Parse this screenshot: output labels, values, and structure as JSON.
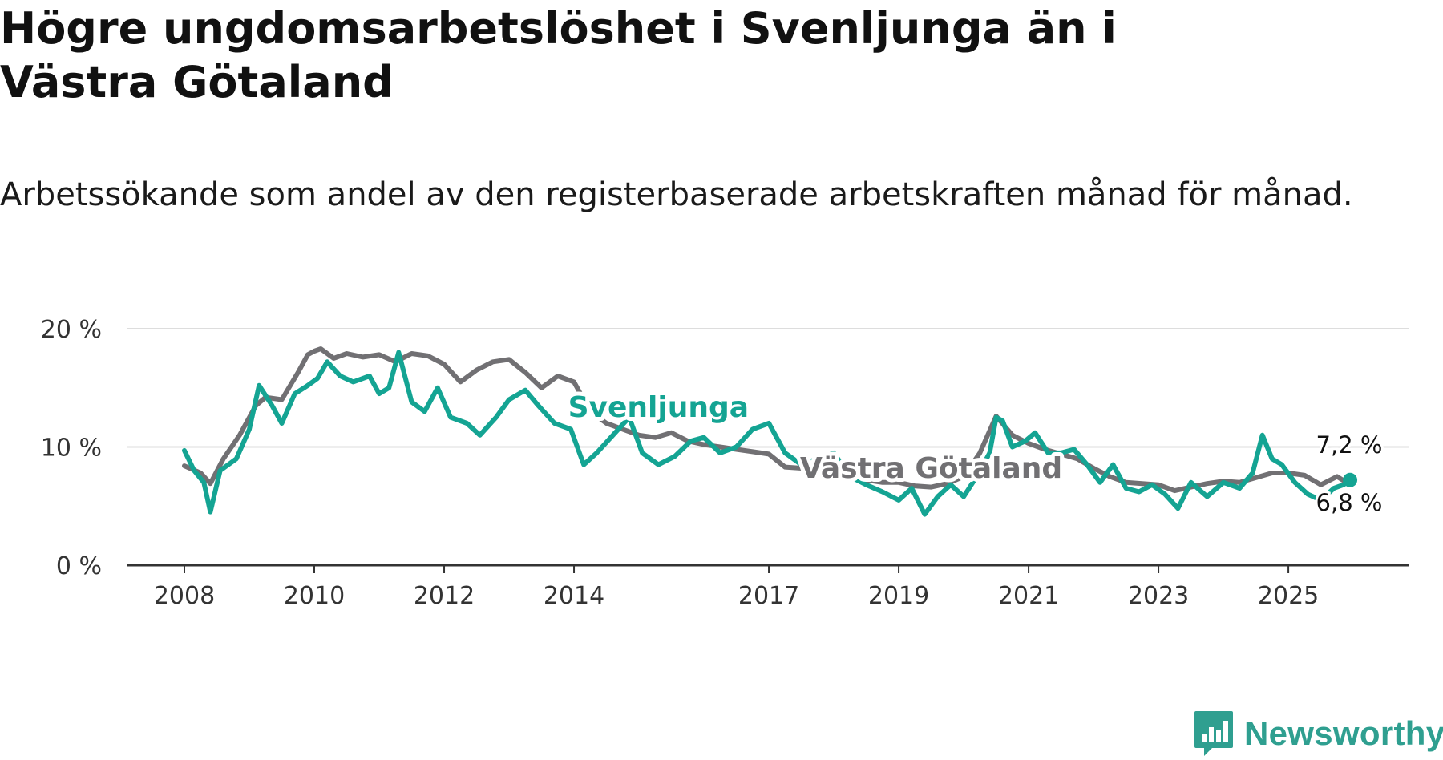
{
  "title": "Högre ungdomsarbetslöshet i Svenljunga än i Västra Götaland",
  "subtitle": "Arbetssökande som andel av den registerbaserade arbetskraften månad för månad.",
  "brand": {
    "name": "Newsworthy",
    "icon": "newsworthy-chart-icon"
  },
  "colors": {
    "svenljunga": "#14a493",
    "vastra_gotaland": "#717073",
    "grid": "#dddddd",
    "axis": "#333333",
    "brand": "#2f9f90"
  },
  "chart_data": {
    "type": "line",
    "title": "Högre ungdomsarbetslöshet i Svenljunga än i Västra Götaland",
    "xlabel": "",
    "ylabel": "",
    "ylim": [
      0,
      20
    ],
    "xlim": [
      2008,
      2026.9
    ],
    "y_ticks": [
      {
        "value": 0,
        "label": "0 %"
      },
      {
        "value": 10,
        "label": "10 %"
      },
      {
        "value": 20,
        "label": "20 %"
      }
    ],
    "x_ticks": [
      {
        "value": 2008,
        "label": "2008"
      },
      {
        "value": 2010,
        "label": "2010"
      },
      {
        "value": 2012,
        "label": "2012"
      },
      {
        "value": 2014,
        "label": "2014"
      },
      {
        "value": 2017,
        "label": "2017"
      },
      {
        "value": 2019,
        "label": "2019"
      },
      {
        "value": 2021,
        "label": "2021"
      },
      {
        "value": 2023,
        "label": "2023"
      },
      {
        "value": 2025,
        "label": "2025"
      }
    ],
    "grid": true,
    "series": [
      {
        "name": "Västra Götaland",
        "label": "Västra Götaland",
        "end_label": "6,8 %",
        "x": [
          2008.0,
          2008.25,
          2008.4,
          2008.6,
          2008.85,
          2009.1,
          2009.25,
          2009.5,
          2009.75,
          2009.9,
          2010.0,
          2010.1,
          2010.3,
          2010.5,
          2010.75,
          2011.0,
          2011.25,
          2011.5,
          2011.75,
          2012.0,
          2012.25,
          2012.5,
          2012.75,
          2013.0,
          2013.25,
          2013.5,
          2013.75,
          2014.0,
          2014.25,
          2014.5,
          2014.75,
          2015.0,
          2015.25,
          2015.5,
          2015.75,
          2016.0,
          2016.25,
          2016.5,
          2016.75,
          2017.0,
          2017.25,
          2017.5,
          2017.75,
          2018.0,
          2018.25,
          2018.5,
          2018.75,
          2019.0,
          2019.25,
          2019.5,
          2019.75,
          2020.0,
          2020.25,
          2020.5,
          2020.75,
          2021.0,
          2021.25,
          2021.5,
          2021.75,
          2022.0,
          2022.25,
          2022.5,
          2022.75,
          2023.0,
          2023.25,
          2023.5,
          2023.75,
          2024.0,
          2024.25,
          2024.5,
          2024.75,
          2025.0,
          2025.25,
          2025.5,
          2025.75,
          2025.95
        ],
        "values": [
          8.4,
          7.8,
          6.9,
          9.0,
          11.0,
          13.5,
          14.2,
          14.0,
          16.3,
          17.8,
          18.1,
          18.3,
          17.5,
          17.9,
          17.6,
          17.8,
          17.2,
          17.9,
          17.7,
          17.0,
          15.5,
          16.5,
          17.2,
          17.4,
          16.3,
          15.0,
          16.0,
          15.5,
          13.0,
          12.0,
          11.5,
          11.0,
          10.8,
          11.2,
          10.5,
          10.2,
          10.0,
          9.8,
          9.6,
          9.4,
          8.3,
          8.2,
          8.0,
          7.7,
          7.4,
          7.2,
          7.0,
          7.0,
          6.7,
          6.6,
          6.9,
          7.5,
          9.5,
          12.6,
          11.0,
          10.3,
          9.8,
          9.4,
          9.0,
          8.2,
          7.5,
          7.0,
          6.9,
          6.8,
          6.3,
          6.6,
          6.9,
          7.1,
          7.0,
          7.4,
          7.8,
          7.8,
          7.6,
          6.8,
          7.5,
          6.8
        ]
      },
      {
        "name": "Svenljunga",
        "label": "Svenljunga",
        "end_label": "7,2 %",
        "x": [
          2008.0,
          2008.15,
          2008.3,
          2008.4,
          2008.55,
          2008.8,
          2009.0,
          2009.15,
          2009.35,
          2009.5,
          2009.7,
          2009.9,
          2010.05,
          2010.2,
          2010.4,
          2010.6,
          2010.85,
          2011.0,
          2011.15,
          2011.3,
          2011.5,
          2011.7,
          2011.9,
          2012.1,
          2012.35,
          2012.55,
          2012.8,
          2013.0,
          2013.25,
          2013.45,
          2013.7,
          2013.95,
          2014.15,
          2014.35,
          2014.6,
          2014.85,
          2015.05,
          2015.3,
          2015.55,
          2015.8,
          2016.0,
          2016.25,
          2016.5,
          2016.75,
          2017.0,
          2017.25,
          2017.5,
          2017.75,
          2018.0,
          2018.25,
          2018.5,
          2018.75,
          2019.0,
          2019.2,
          2019.4,
          2019.6,
          2019.8,
          2020.0,
          2020.2,
          2020.4,
          2020.5,
          2020.6,
          2020.75,
          2020.95,
          2021.1,
          2021.3,
          2021.5,
          2021.7,
          2021.9,
          2022.1,
          2022.3,
          2022.5,
          2022.7,
          2022.9,
          2023.1,
          2023.3,
          2023.5,
          2023.75,
          2024.0,
          2024.25,
          2024.45,
          2024.6,
          2024.75,
          2024.9,
          2025.1,
          2025.3,
          2025.5,
          2025.7,
          2025.85,
          2025.95
        ],
        "values": [
          9.7,
          8.0,
          7.0,
          4.5,
          8.0,
          9.0,
          11.5,
          15.2,
          13.5,
          12.0,
          14.5,
          15.2,
          15.8,
          17.2,
          16.0,
          15.5,
          16.0,
          14.5,
          15.0,
          18.0,
          13.8,
          13.0,
          15.0,
          12.5,
          12.0,
          11.0,
          12.5,
          14.0,
          14.8,
          13.5,
          12.0,
          11.5,
          8.5,
          9.5,
          11.0,
          12.5,
          9.5,
          8.5,
          9.2,
          10.5,
          10.8,
          9.5,
          10.0,
          11.5,
          12.0,
          9.5,
          8.5,
          9.0,
          9.5,
          7.5,
          6.8,
          6.2,
          5.5,
          6.5,
          4.3,
          5.8,
          6.8,
          5.8,
          7.5,
          9.5,
          12.5,
          12.2,
          10.0,
          10.5,
          11.2,
          9.5,
          9.5,
          9.8,
          8.5,
          7.0,
          8.5,
          6.5,
          6.2,
          6.8,
          6.0,
          4.8,
          7.0,
          5.8,
          7.0,
          6.5,
          7.8,
          11.0,
          9.0,
          8.5,
          7.0,
          6.0,
          5.5,
          6.5,
          6.8,
          7.2
        ]
      }
    ]
  }
}
